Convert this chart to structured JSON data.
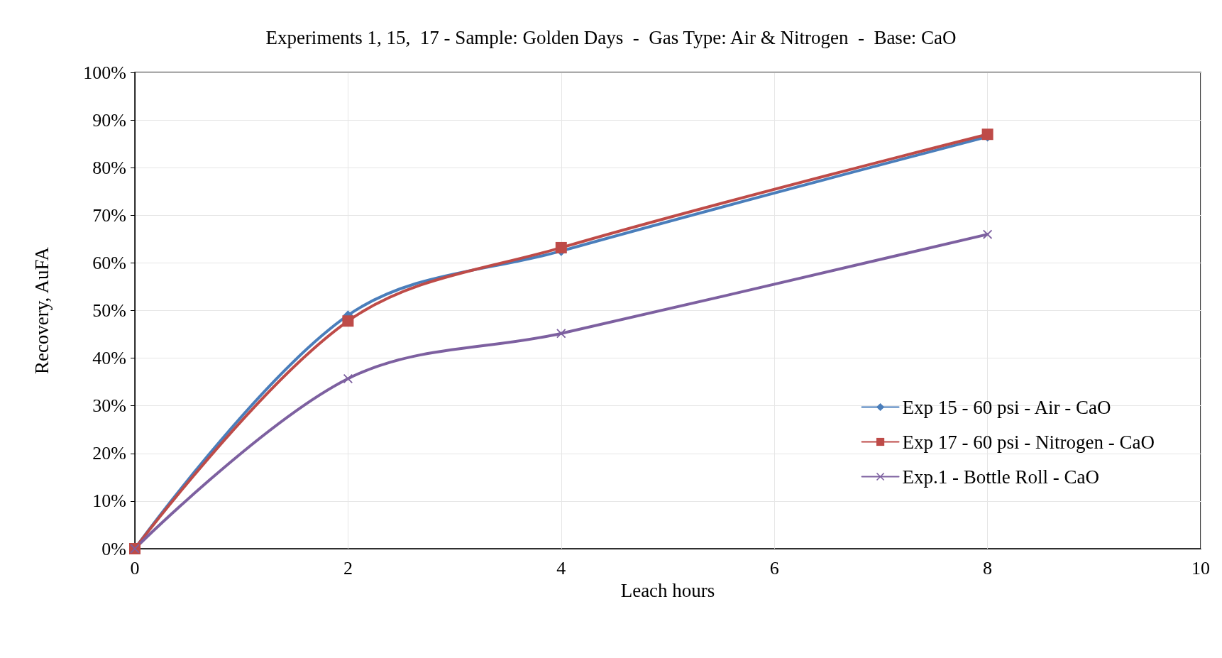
{
  "chart_data": {
    "type": "line",
    "title": "Experiments 1, 15,  17 - Sample: Golden Days  -  Gas Type: Air & Nitrogen  -  Base: CaO",
    "xlabel": "Leach hours",
    "ylabel": "Recovery, AuFA",
    "x": [
      0,
      2,
      4,
      8
    ],
    "series": [
      {
        "name": "Exp 15 - 60 psi - Air - CaO",
        "color": "#4a7ebb",
        "values": [
          0,
          49,
          62.5,
          86.5
        ],
        "marker": "diamond"
      },
      {
        "name": "Exp 17 - 60 psi - Nitrogen - CaO",
        "color": "#be4b48",
        "values": [
          0,
          47.8,
          63.2,
          87
        ],
        "marker": "square"
      },
      {
        "name": "Exp.1 - Bottle Roll - CaO",
        "color": "#7d60a0",
        "values": [
          0,
          35.7,
          45.2,
          66
        ],
        "marker": "cross"
      }
    ],
    "xlim": [
      0,
      10
    ],
    "xticks": [
      0,
      2,
      4,
      6,
      8,
      10
    ],
    "ylim": [
      0,
      100
    ],
    "yticks": [
      {
        "value": 0,
        "label": "0%"
      },
      {
        "value": 10,
        "label": "10%"
      },
      {
        "value": 20,
        "label": "20%"
      },
      {
        "value": 30,
        "label": "30%"
      },
      {
        "value": 40,
        "label": "40%"
      },
      {
        "value": 50,
        "label": "50%"
      },
      {
        "value": 60,
        "label": "60%"
      },
      {
        "value": 70,
        "label": "70%"
      },
      {
        "value": 80,
        "label": "80%"
      },
      {
        "value": 90,
        "label": "90%"
      },
      {
        "value": 100,
        "label": "100%"
      }
    ],
    "grid": true,
    "legend": "bottom right",
    "line_style": "solid"
  }
}
